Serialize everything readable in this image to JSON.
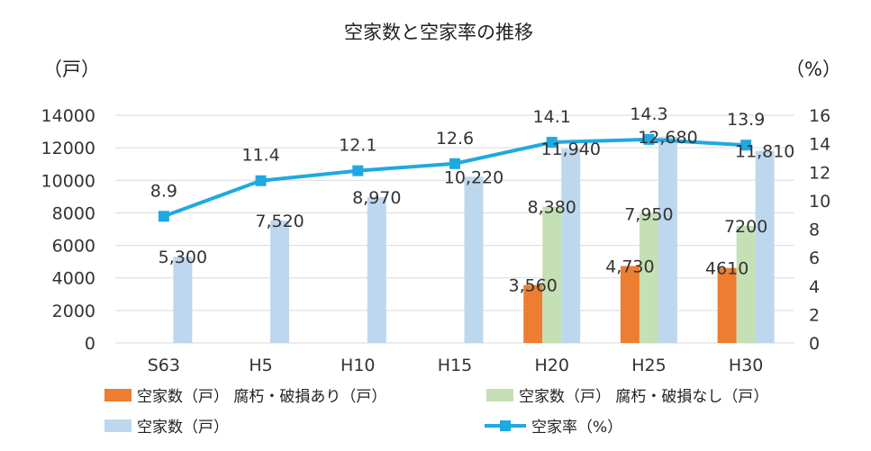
{
  "chart_data": {
    "type": "bar+line",
    "title": "空家数と空家率の推移",
    "y_left_unit": "（戸）",
    "y_right_unit": "（%）",
    "categories": [
      "S63",
      "H5",
      "H10",
      "H15",
      "H20",
      "H25",
      "H30"
    ],
    "y_left_ticks": [
      "0",
      "2000",
      "4000",
      "6000",
      "8000",
      "10000",
      "12000",
      "14000"
    ],
    "y_left_range": [
      0,
      14000
    ],
    "y_right_ticks": [
      "0",
      "2",
      "4",
      "6",
      "8",
      "10",
      "12",
      "14",
      "16"
    ],
    "y_right_range": [
      0,
      16
    ],
    "series": [
      {
        "name": "空家数（戸） 腐朽・破損あり（戸）",
        "color": "#ED7D31",
        "values": [
          null,
          null,
          null,
          null,
          3560,
          4730,
          4610
        ],
        "labels": [
          "",
          "",
          "",
          "",
          "3,560",
          "4,730",
          "4610"
        ]
      },
      {
        "name": "空家数（戸） 腐朽・破損なし（戸）",
        "color": "#C5E0B4",
        "values": [
          null,
          null,
          null,
          null,
          8380,
          7950,
          7200
        ],
        "labels": [
          "",
          "",
          "",
          "",
          "8,380",
          "7,950",
          "7200"
        ]
      },
      {
        "name": "空家数（戸）",
        "color": "#BDD7EE",
        "values": [
          5300,
          7520,
          8970,
          10220,
          11940,
          12680,
          11810
        ],
        "labels": [
          "5,300",
          "7,520",
          "8,970",
          "10,220",
          "11,940",
          "12,680",
          "11,810"
        ]
      },
      {
        "name": "空家率（%）",
        "color": "#1FA9E1",
        "axis": "right",
        "values": [
          8.9,
          11.4,
          12.1,
          12.6,
          14.1,
          14.3,
          13.9
        ],
        "labels": [
          "8.9",
          "11.4",
          "12.1",
          "12.6",
          "14.1",
          "14.3",
          "13.9"
        ]
      }
    ],
    "legend": [
      "空家数（戸） 腐朽・破損あり（戸）",
      "空家数（戸） 腐朽・破損なし（戸）",
      "空家数（戸）",
      "空家率（%）"
    ],
    "grid": true,
    "legend_position": "bottom"
  }
}
